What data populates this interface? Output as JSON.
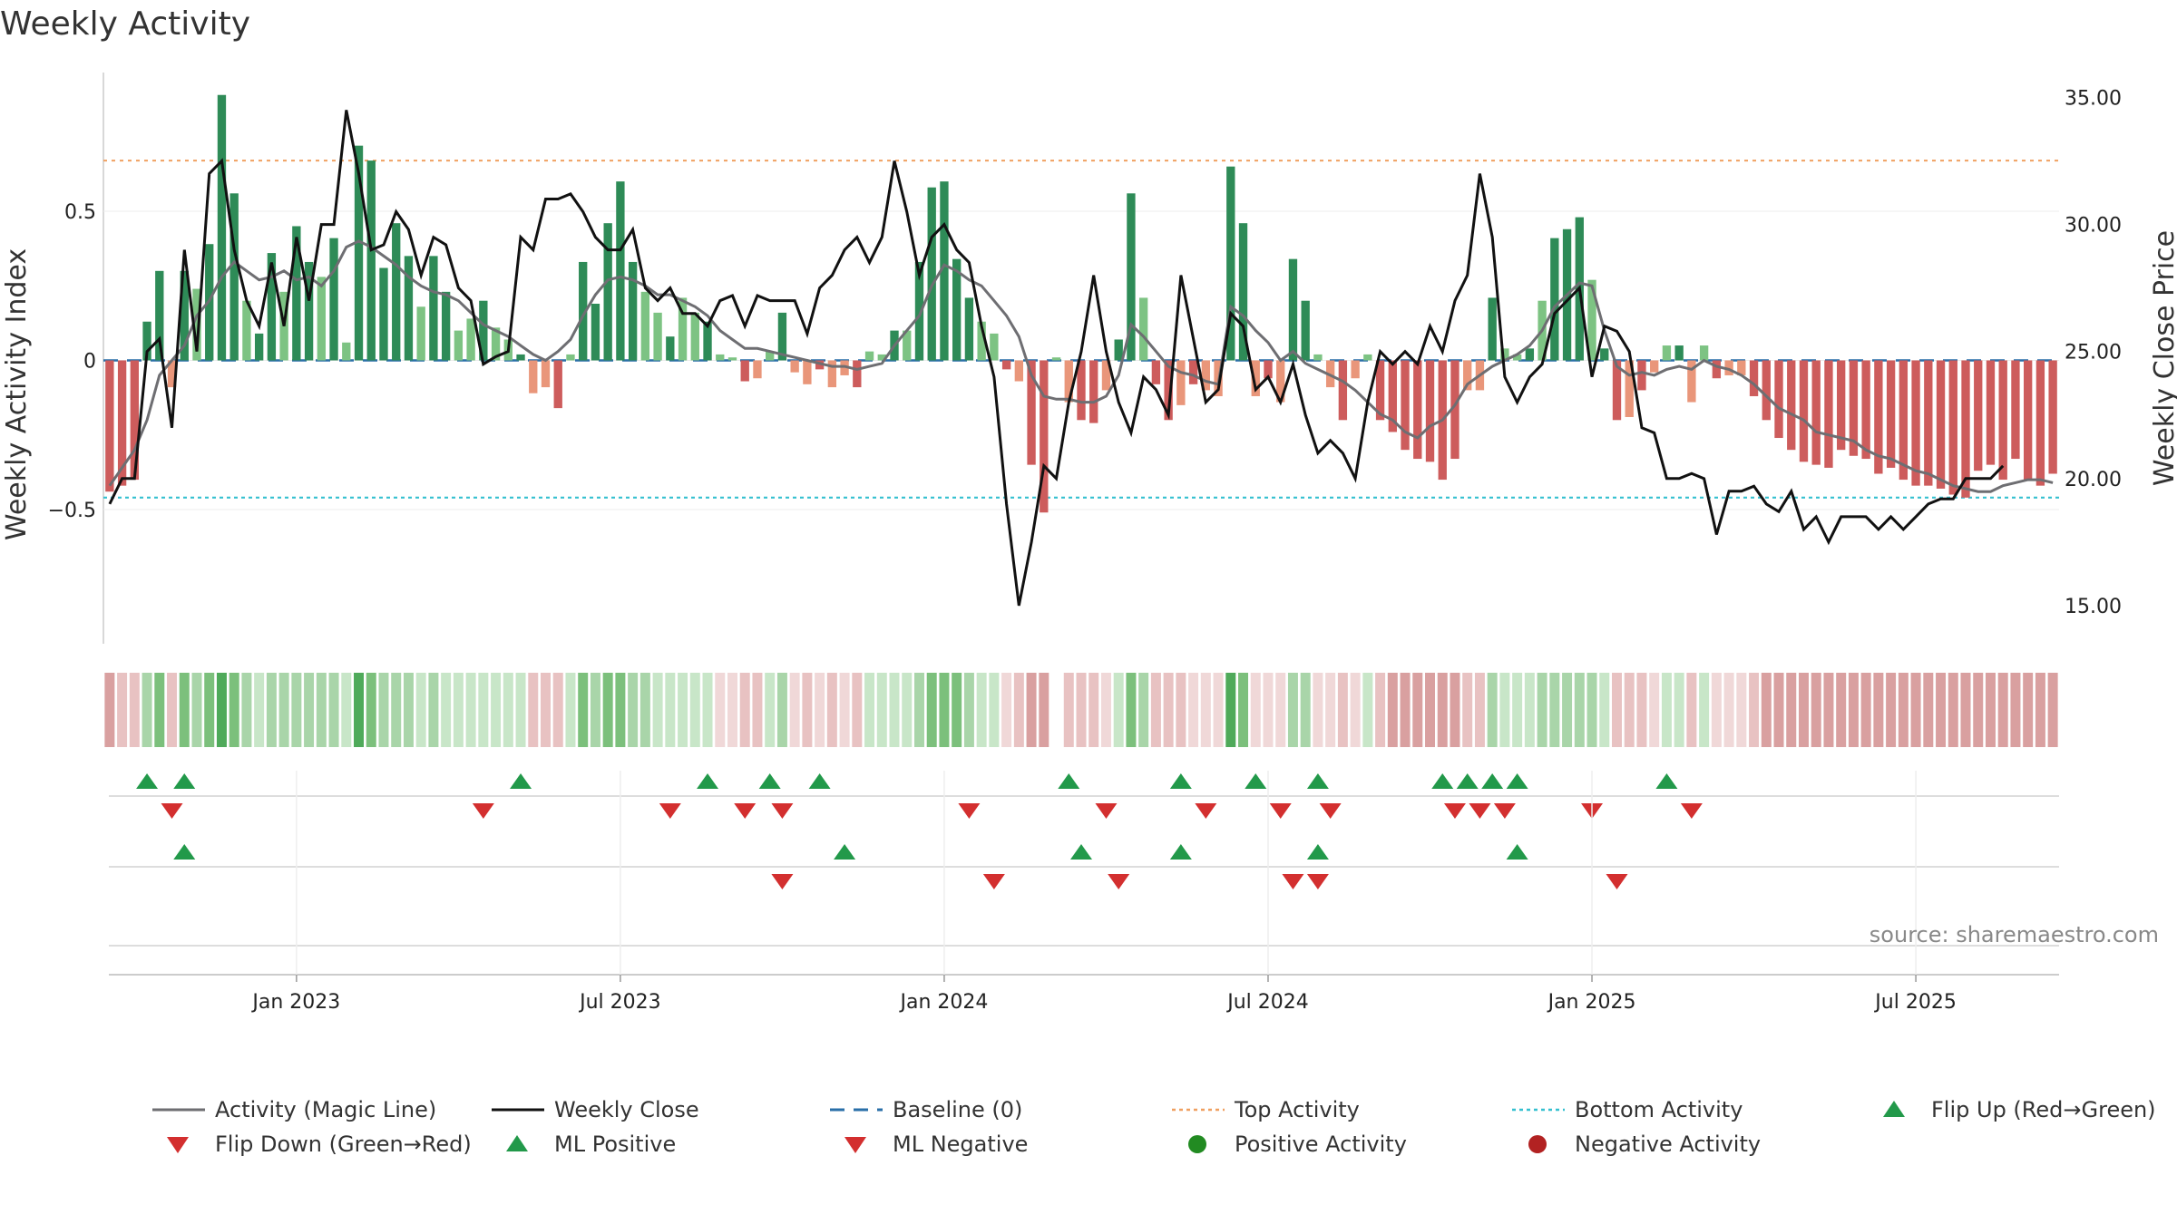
{
  "chart_data": {
    "type": "bar",
    "title": "Weekly Activity",
    "ylabel_left": "Weekly Activity Index",
    "ylabel_right": "Weekly Close Price",
    "source": "source: sharemaestro.com",
    "ylim_left": [
      -0.95,
      0.95
    ],
    "ylim_right": [
      13.5,
      35.8
    ],
    "top_activity": 0.67,
    "bottom_activity": -0.46,
    "left_ticks": [
      {
        "value": 0.5,
        "label": "0.5"
      },
      {
        "value": 0,
        "label": "0"
      },
      {
        "value": -0.5,
        "label": "−0.5"
      }
    ],
    "right_ticks": [
      {
        "value": 35,
        "label": "35.00"
      },
      {
        "value": 30,
        "label": "30.00"
      },
      {
        "value": 25,
        "label": "25.00"
      },
      {
        "value": 20,
        "label": "20.00"
      },
      {
        "value": 15,
        "label": "15.00"
      }
    ],
    "x_tick_labels": [
      {
        "week": 15,
        "label": "Jan 2023"
      },
      {
        "week": 41,
        "label": "Jul 2023"
      },
      {
        "week": 67,
        "label": "Jan 2024"
      },
      {
        "week": 93,
        "label": "Jul 2024"
      },
      {
        "week": 119,
        "label": "Jan 2025"
      },
      {
        "week": 145,
        "label": "Jul 2025"
      }
    ],
    "activity": [
      -0.44,
      -0.42,
      -0.4,
      0.13,
      0.3,
      -0.09,
      0.3,
      0.24,
      0.39,
      0.89,
      0.56,
      0.2,
      0.09,
      0.36,
      0.23,
      0.45,
      0.33,
      0.28,
      0.41,
      0.06,
      0.72,
      0.67,
      0.31,
      0.46,
      0.35,
      0.18,
      0.35,
      0.23,
      0.1,
      0.14,
      0.2,
      0.11,
      0.07,
      0.02,
      -0.11,
      -0.09,
      -0.16,
      0.02,
      0.33,
      0.19,
      0.46,
      0.6,
      0.33,
      0.23,
      0.16,
      0.08,
      0.21,
      0.16,
      0.13,
      0.02,
      0.01,
      -0.07,
      -0.06,
      0.03,
      0.16,
      -0.04,
      -0.08,
      -0.03,
      -0.09,
      -0.05,
      -0.09,
      0.03,
      0.02,
      0.1,
      0.1,
      0.33,
      0.58,
      0.6,
      0.34,
      0.21,
      0.13,
      0.09,
      -0.03,
      -0.07,
      -0.35,
      -0.51,
      0.01,
      -0.14,
      -0.2,
      -0.21,
      -0.1,
      0.07,
      0.56,
      0.21,
      -0.08,
      -0.2,
      -0.15,
      -0.08,
      -0.1,
      -0.12,
      0.65,
      0.46,
      -0.12,
      -0.06,
      -0.14,
      0.34,
      0.2,
      0.02,
      -0.09,
      -0.2,
      -0.06,
      0.02,
      -0.2,
      -0.24,
      -0.3,
      -0.33,
      -0.34,
      -0.4,
      -0.33,
      -0.1,
      -0.1,
      0.21,
      0.04,
      0.02,
      0.04,
      0.2,
      0.41,
      0.44,
      0.48,
      0.27,
      0.04,
      -0.2,
      -0.19,
      -0.1,
      -0.04,
      0.05,
      0.05,
      -0.14,
      0.05,
      -0.06,
      -0.05,
      -0.05,
      -0.12,
      -0.2,
      -0.26,
      -0.3,
      -0.34,
      -0.35,
      -0.36,
      -0.3,
      -0.32,
      -0.33,
      -0.38,
      -0.36,
      -0.4,
      -0.42,
      -0.42,
      -0.43,
      -0.45,
      -0.46,
      -0.37,
      -0.35,
      -0.4,
      -0.33,
      -0.4,
      -0.42,
      -0.38
    ],
    "magic_line": [
      -0.42,
      -0.36,
      -0.3,
      -0.2,
      -0.05,
      0.0,
      0.05,
      0.15,
      0.2,
      0.28,
      0.33,
      0.3,
      0.27,
      0.28,
      0.3,
      0.27,
      0.28,
      0.25,
      0.3,
      0.38,
      0.4,
      0.38,
      0.35,
      0.32,
      0.28,
      0.25,
      0.23,
      0.22,
      0.2,
      0.16,
      0.12,
      0.1,
      0.08,
      0.05,
      0.02,
      0.0,
      0.03,
      0.07,
      0.15,
      0.22,
      0.27,
      0.28,
      0.27,
      0.25,
      0.22,
      0.22,
      0.2,
      0.18,
      0.15,
      0.1,
      0.07,
      0.04,
      0.04,
      0.03,
      0.02,
      0.01,
      0.0,
      -0.01,
      -0.02,
      -0.02,
      -0.03,
      -0.02,
      -0.01,
      0.05,
      0.1,
      0.15,
      0.25,
      0.32,
      0.3,
      0.27,
      0.25,
      0.2,
      0.15,
      0.08,
      -0.05,
      -0.12,
      -0.13,
      -0.13,
      -0.14,
      -0.14,
      -0.12,
      -0.05,
      0.12,
      0.08,
      0.03,
      -0.02,
      -0.04,
      -0.05,
      -0.07,
      -0.08,
      0.18,
      0.15,
      0.1,
      0.06,
      0.0,
      0.03,
      -0.01,
      -0.03,
      -0.05,
      -0.07,
      -0.1,
      -0.14,
      -0.18,
      -0.2,
      -0.24,
      -0.26,
      -0.22,
      -0.2,
      -0.15,
      -0.08,
      -0.05,
      -0.02,
      0.0,
      0.02,
      0.05,
      0.1,
      0.18,
      0.22,
      0.26,
      0.25,
      0.1,
      -0.02,
      -0.05,
      -0.04,
      -0.05,
      -0.03,
      -0.02,
      -0.03,
      0.0,
      -0.02,
      -0.03,
      -0.05,
      -0.08,
      -0.12,
      -0.16,
      -0.18,
      -0.2,
      -0.24,
      -0.25,
      -0.26,
      -0.27,
      -0.3,
      -0.32,
      -0.33,
      -0.35,
      -0.37,
      -0.38,
      -0.4,
      -0.42,
      -0.43,
      -0.44,
      -0.44,
      -0.42,
      -0.41,
      -0.4,
      -0.4,
      -0.41
    ],
    "weekly_close": [
      19.0,
      20.0,
      20.0,
      25.0,
      25.5,
      22.0,
      29.0,
      25.0,
      32.0,
      32.5,
      29.0,
      27.0,
      26.0,
      28.5,
      26.0,
      29.5,
      27.0,
      30.0,
      30.0,
      34.5,
      32.0,
      29.0,
      29.2,
      30.5,
      29.8,
      28.0,
      29.5,
      29.2,
      27.5,
      27.0,
      24.5,
      24.8,
      25.0,
      29.5,
      29.0,
      31.0,
      31.0,
      31.2,
      30.5,
      29.5,
      29.0,
      29.0,
      29.8,
      27.5,
      27.0,
      27.5,
      26.5,
      26.5,
      26.0,
      27.0,
      27.2,
      26.0,
      27.2,
      27.0,
      27.0,
      27.0,
      25.7,
      27.5,
      28.0,
      29.0,
      29.5,
      28.5,
      29.5,
      32.5,
      30.5,
      28.0,
      29.5,
      30.0,
      29.0,
      28.5,
      26.0,
      24.0,
      19.0,
      15.0,
      17.5,
      20.5,
      20.0,
      23.0,
      25.0,
      28.0,
      25.0,
      23.0,
      21.8,
      24.0,
      23.5,
      22.5,
      28.0,
      25.5,
      23.0,
      23.5,
      26.5,
      26.0,
      23.5,
      24.0,
      23.0,
      24.5,
      22.5,
      21.0,
      21.5,
      21.0,
      20.0,
      23.0,
      25.0,
      24.5,
      25.0,
      24.5,
      26.0,
      25.0,
      27.0,
      28.0,
      32.0,
      29.5,
      24.0,
      23.0,
      24.0,
      24.5,
      26.5,
      27.0,
      27.5,
      24.0,
      26.0,
      25.8,
      25.0,
      22.0,
      21.8,
      20.0,
      20.0,
      20.2,
      20.0,
      17.8,
      19.5,
      19.5,
      19.7,
      19.0,
      18.7,
      19.5,
      18.0,
      18.5,
      17.5,
      18.5,
      18.5,
      18.5,
      18.0,
      18.5,
      18.0,
      18.5,
      19.0,
      19.2,
      19.2,
      20.0,
      20.0,
      20.0,
      20.5
    ],
    "heat_strip_colors": [
      "#d9a0a0",
      "#e8c2c2",
      "#e8c2c2",
      "#a9d5a9",
      "#7cc07c",
      "#e8c2c2",
      "#7cc07c",
      "#a9d5a9",
      "#7cc07c",
      "#4faa5a",
      "#7cc07c",
      "#a9d5a9",
      "#c8e6c8",
      "#a9d5a9",
      "#a9d5a9",
      "#a9d5a9",
      "#a9d5a9",
      "#a9d5a9",
      "#a9d5a9",
      "#c8e6c8",
      "#4faa5a",
      "#7cc07c",
      "#a9d5a9",
      "#a9d5a9",
      "#a9d5a9",
      "#c8e6c8",
      "#a9d5a9",
      "#c8e6c8",
      "#c8e6c8",
      "#c8e6c8",
      "#c8e6c8",
      "#c8e6c8",
      "#c8e6c8",
      "#c8e6c8",
      "#e8c2c2",
      "#e8c2c2",
      "#e8c2c2",
      "#c8e6c8",
      "#7cc07c",
      "#a9d5a9",
      "#7cc07c",
      "#7cc07c",
      "#a9d5a9",
      "#a9d5a9",
      "#c8e6c8",
      "#c8e6c8",
      "#c8e6c8",
      "#c8e6c8",
      "#c8e6c8",
      "#f0d8d8",
      "#f0d8d8",
      "#e8c2c2",
      "#e8c2c2",
      "#c8e6c8",
      "#a9d5a9",
      "#f0d8d8",
      "#e8c2c2",
      "#f0d8d8",
      "#e8c2c2",
      "#f0d8d8",
      "#e8c2c2",
      "#c8e6c8",
      "#c8e6c8",
      "#c8e6c8",
      "#c8e6c8",
      "#a9d5a9",
      "#7cc07c",
      "#7cc07c",
      "#7cc07c",
      "#a9d5a9",
      "#c8e6c8",
      "#c8e6c8",
      "#f0d8d8",
      "#e8c2c2",
      "#d9a0a0",
      "#d9a0a0",
      "none",
      "#e8c2c2",
      "#e8c2c2",
      "#e8c2c2",
      "#f0d8d8",
      "#c8e6c8",
      "#7cc07c",
      "#a9d5a9",
      "#e8c2c2",
      "#e8c2c2",
      "#e8c2c2",
      "#f0d8d8",
      "#f0d8d8",
      "#f0d8d8",
      "#4faa5a",
      "#7cc07c",
      "#f0d8d8",
      "#f0d8d8",
      "#f0d8d8",
      "#a9d5a9",
      "#a9d5a9",
      "#f0d8d8",
      "#f0d8d8",
      "#e8c2c2",
      "#f0d8d8",
      "#c8e6c8",
      "#e8c2c2",
      "#d9a0a0",
      "#d9a0a0",
      "#d9a0a0",
      "#d9a0a0",
      "#d9a0a0",
      "#d9a0a0",
      "#e8c2c2",
      "#e8c2c2",
      "#a9d5a9",
      "#c8e6c8",
      "#c8e6c8",
      "#c8e6c8",
      "#a9d5a9",
      "#a9d5a9",
      "#a9d5a9",
      "#a9d5a9",
      "#a9d5a9",
      "#c8e6c8",
      "#e8c2c2",
      "#e8c2c2",
      "#e8c2c2",
      "#f0d8d8",
      "#c8e6c8",
      "#c8e6c8",
      "#e8c2c2",
      "#c8e6c8",
      "#f0d8d8",
      "#f0d8d8",
      "#f0d8d8",
      "#e8c2c2",
      "#d9a0a0",
      "#d9a0a0",
      "#d9a0a0",
      "#d9a0a0",
      "#d9a0a0",
      "#d9a0a0",
      "#d9a0a0",
      "#d9a0a0",
      "#d9a0a0",
      "#d9a0a0",
      "#d9a0a0",
      "#d9a0a0",
      "#d9a0a0",
      "#d9a0a0",
      "#d9a0a0",
      "#d9a0a0",
      "#d9a0a0",
      "#d9a0a0",
      "#d9a0a0",
      "#d9a0a0",
      "#d9a0a0",
      "#d9a0a0",
      "#d9a0a0",
      "#d9a0a0"
    ],
    "flip_up_weeks": [
      3,
      6,
      33,
      48,
      53,
      57,
      77,
      86,
      92,
      97,
      107,
      109,
      111,
      113,
      125
    ],
    "flip_down_weeks": [
      5,
      30,
      45,
      51,
      54,
      69,
      80,
      88,
      94,
      98,
      108,
      110,
      112,
      119,
      127
    ],
    "ml_positive_weeks": [
      6,
      59,
      78,
      86,
      97,
      113
    ],
    "ml_negative_weeks": [
      54,
      71,
      81,
      95,
      97,
      121
    ]
  },
  "legend": [
    {
      "label": "Activity (Magic Line)",
      "marker": "line",
      "color": "#6e6e72"
    },
    {
      "label": "Weekly Close",
      "marker": "line",
      "color": "#111111"
    },
    {
      "label": "Baseline (0)",
      "marker": "dash",
      "color": "#2a6fa8"
    },
    {
      "label": "Top Activity",
      "marker": "dot-line",
      "color": "#f0a060"
    },
    {
      "label": "Bottom Activity",
      "marker": "dot-line",
      "color": "#35c0d0"
    },
    {
      "label": "Flip Up (Red→Green)",
      "marker": "triangle-up",
      "color": "#22994a"
    },
    {
      "label": "Flip Down (Green→Red)",
      "marker": "triangle-down",
      "color": "#d32f2f"
    },
    {
      "label": "ML Positive",
      "marker": "triangle-up",
      "color": "#22994a"
    },
    {
      "label": "ML Negative",
      "marker": "triangle-down",
      "color": "#d32f2f"
    },
    {
      "label": "Positive Activity",
      "marker": "circle",
      "color": "#228b22"
    },
    {
      "label": "Negative Activity",
      "marker": "circle",
      "color": "#b22222"
    }
  ],
  "colors": {
    "pos_strong": "#2e8b57",
    "pos_light": "#7dc383",
    "neg_strong": "#cd5c5c",
    "neg_light": "#e9967a"
  }
}
